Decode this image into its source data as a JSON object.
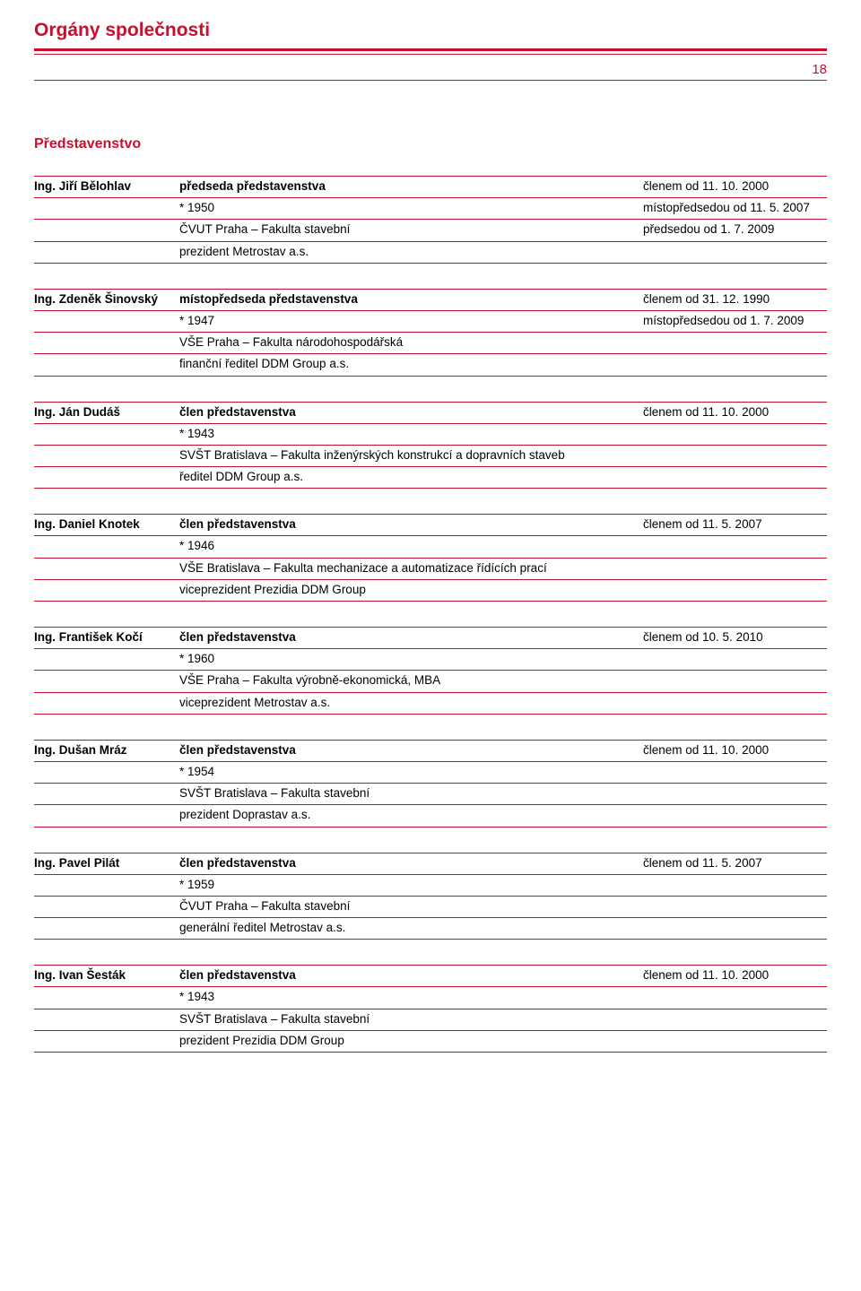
{
  "colors": {
    "accent": "#c8102e",
    "text": "#000000",
    "background": "#ffffff"
  },
  "page": {
    "title": "Orgány společnosti",
    "number": "18",
    "section_title": "Představenstvo"
  },
  "members": [
    {
      "name": "Ing. Jiří Bělohlav",
      "role": "předseda představenstva",
      "role_note": "členem od 11. 10. 2000",
      "rows": [
        {
          "mid": "* 1950",
          "right": "místopředsedou od 11. 5. 2007"
        },
        {
          "mid": "ČVUT Praha – Fakulta stavební",
          "right": "předsedou od 1. 7. 2009"
        },
        {
          "mid": "prezident Metrostav a.s.",
          "right": ""
        }
      ]
    },
    {
      "name": "Ing. Zdeněk Šinovský",
      "role": "místopředseda představenstva",
      "role_note": "členem od 31. 12. 1990",
      "rows": [
        {
          "mid": "* 1947",
          "right": "místopředsedou od 1. 7. 2009"
        },
        {
          "mid": "VŠE Praha – Fakulta národohospodářská",
          "right": ""
        },
        {
          "mid": "finanční ředitel DDM Group a.s.",
          "right": ""
        }
      ]
    },
    {
      "name": "Ing. Ján Dudáš",
      "role": "člen představenstva",
      "role_note": "členem od 11. 10. 2000",
      "rows": [
        {
          "mid": "* 1943",
          "right": ""
        },
        {
          "mid": "SVŠT Bratislava – Fakulta inženýrských konstrukcí a dopravních staveb",
          "right": ""
        },
        {
          "mid": "ředitel DDM Group a.s.",
          "right": ""
        }
      ]
    },
    {
      "name": "Ing. Daniel Knotek",
      "role": "člen představenstva",
      "role_note": "členem od 11. 5. 2007",
      "rows": [
        {
          "mid": "* 1946",
          "right": ""
        },
        {
          "mid": "VŠE Bratislava – Fakulta mechanizace a automatizace řídících prací",
          "right": ""
        },
        {
          "mid": "viceprezident Prezidia DDM Group",
          "right": ""
        }
      ]
    },
    {
      "name": "Ing. František Kočí",
      "role": "člen představenstva",
      "role_note": "členem od 10. 5. 2010",
      "rows": [
        {
          "mid": "* 1960",
          "right": ""
        },
        {
          "mid": "VŠE Praha – Fakulta výrobně-ekonomická, MBA",
          "right": ""
        },
        {
          "mid": "viceprezident Metrostav a.s.",
          "right": ""
        }
      ]
    },
    {
      "name": "Ing. Dušan Mráz",
      "role": "člen představenstva",
      "role_note": "členem od 11. 10. 2000",
      "rows": [
        {
          "mid": "* 1954",
          "right": ""
        },
        {
          "mid": "SVŠT Bratislava – Fakulta stavební",
          "right": ""
        },
        {
          "mid": "prezident Doprastav a.s.",
          "right": ""
        }
      ]
    },
    {
      "name": "Ing. Pavel Pilát",
      "role": "člen představenstva",
      "role_note": "členem od 11. 5. 2007",
      "rows": [
        {
          "mid": "* 1959",
          "right": ""
        },
        {
          "mid": "ČVUT Praha – Fakulta stavební",
          "right": ""
        },
        {
          "mid": "generální ředitel Metrostav a.s.",
          "right": ""
        }
      ]
    },
    {
      "name": "Ing. Ivan Šesták",
      "role": "člen představenstva",
      "role_note": "členem od 11. 10. 2000",
      "rows": [
        {
          "mid": "* 1943",
          "right": ""
        },
        {
          "mid": "SVŠT Bratislava – Fakulta stavební",
          "right": ""
        },
        {
          "mid": "prezident Prezidia DDM Group",
          "right": ""
        }
      ]
    }
  ]
}
